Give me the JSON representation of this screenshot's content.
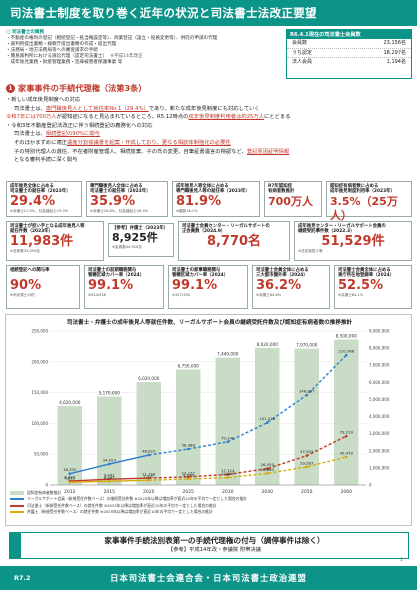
{
  "header": {
    "title": "司法書士制度を取り巻く近年の状況と司法書士法改正要望"
  },
  "intro": {
    "heading": "司法書士の業務",
    "lines": [
      "不動産の権利の登記（相続登記・抵当権設定等）、商業登記（設立・役員変更等）、供託の申請の代理",
      "裁判所提出書類・検察庁提出書類の作成・提出代理",
      "法務局・地方法務局等への審査請求の手続",
      "簡易裁判所における訴訟代理（認定司法書士）"
    ],
    "note": "※平成14年改正",
    "last": "成年後見業務・財産管理業務・犯罪被害者保護事業 等",
    "tail": "等"
  },
  "stats": {
    "heading": "R6.4.1現在の司法書士会員数",
    "rows": [
      {
        "label": "会員数",
        "value": "23,156名"
      },
      {
        "label": "うち認定",
        "value": "18,297名"
      },
      {
        "label": "法人会員",
        "value": "1,194名"
      }
    ]
  },
  "section": {
    "num": "1",
    "title_a": "家事事件の手続代理権",
    "title_b": "（法第3条）"
  },
  "body": {
    "l1": "・新しい成年後見制度への対応",
    "l2a": "司法書士は、",
    "l2b": "専門職後見人として就任率No.1（29.4%）",
    "l2c": "であり、新たな成年後見制度にも対応していく",
    "l3a": "令和7年には700万人",
    "l3b": "が認知症になると見込まれているところ、R5.12時点の",
    "l3c": "成年後見制度利用者は約25万人",
    "l3d": "にとどまる",
    "l4": "・令和3年不動産登記法改正に伴う相続登記の義務化への対応",
    "l5a": "司法書士は、",
    "l5b": "相続登記の90%に関与",
    "l6a": "そのほかまずめに適正",
    "l6b": "遺産分割協議書を起案・作成しており、",
    "l6c": "更なる相談体制強化の必要性",
    "l7a": "子の特別代理人の選任、不在者財産管理人、相続放棄、子の氏の変更、自筆証書遺言の検認など、",
    "l7b": "登記原因証明情報",
    "l8": "となる審判手続に深く関与"
  },
  "boxes": {
    "b1": {
      "label": "成年後見全体に占める\n司法書士の就任率（2023年）",
      "value": "29.4%",
      "foot": "※弁護士21.9%、社会福祉士15.0%"
    },
    "b2": {
      "label": "専門職後見人全体に占める\n司法書士の就任率（2023年）",
      "value": "35.9%",
      "foot": "※弁護士26.8%、社会福祉士18.4%"
    },
    "b3": {
      "label": "成年後見人等全体に占める\n専門職後見人等の就任率（2023年）",
      "value": "81.9%",
      "foot": "※親族18.1%"
    },
    "b4": {
      "label": "R7年認知症\n有病者数推計",
      "value": "700万人",
      "foot": ""
    },
    "b5": {
      "label": "認知症有病者数に占める\n成年後見制度利用率（2023年）",
      "value": "3.5%（25万人）",
      "foot": "※低調"
    },
    "b6": {
      "label": "司法書士が担い手となる成年後見人等\n就任件数（2023年）",
      "value": "11,983件",
      "foot": "※全体数33,059名"
    },
    "b7": {
      "label": "【参考】弁護士（2023年）",
      "value": "8,925件",
      "foot": "※会員数44,916名"
    },
    "b8": {
      "label": "司法書士会員センター・リーガルサポートの\n正会員数（2024.9）",
      "value": "8,770名",
      "foot": ""
    },
    "b9": {
      "label": "成年後見センター・リーガルサポート会員の\n継続受託事件数（2022.3）",
      "value": "51,529件",
      "foot": "※法定後見人等"
    },
    "c1": {
      "label": "相続登記への関与率",
      "value": "90%",
      "foot": "※司法書士の約"
    },
    "c2": {
      "label": "司法書士の前期職務関与\n管轄区域カバー率（2024）",
      "value": "99.1%",
      "foot": "※434/438"
    },
    "c3": {
      "label": "司法書士の家事職務関与\n管轄区域カバー率（2024）",
      "value": "99.1%",
      "foot": "※327/330"
    },
    "c4": {
      "label": "司法書士会員全体に占める\n三大都市圏外率（2024）",
      "value": "36.2%",
      "foot": "※弁護士64.8%"
    },
    "c5": {
      "label": "司法書士会員全体に占める\n東庁所在地登録率（2024）",
      "value": "52.5%",
      "foot": "※弁護士84.1%"
    }
  },
  "chart_data": {
    "type": "bar",
    "title": "司法書士・弁護士の成年後見人等就任件数、リーガルサポート会員の継続受託件数及び認知症有病者数の推移推計",
    "categories": [
      "2012",
      "2015",
      "2020",
      "2025",
      "2030",
      "2040",
      "2050",
      "2060"
    ],
    "series": [
      {
        "name": "認知症有病者数推計",
        "values": [
          4620000,
          5170000,
          6020000,
          6750000,
          7440000,
          8020000,
          7970000,
          8500000
        ],
        "axis": "right"
      },
      {
        "name": "リーガルサポート会員（継続受託件数）",
        "values": [
          18332,
          34023,
          48623,
          58388,
          70140,
          101218,
          146067,
          210786
        ]
      },
      {
        "name": "司法書士（新規就任件数）",
        "values": [
          6382,
          9442,
          11184,
          13272,
          17124,
          26555,
          47592,
          79219
        ]
      },
      {
        "name": "弁護士（新規就任件数）",
        "values": [
          4613,
          6087,
          7731,
          9746,
          12000,
          18860,
          29287,
          45479
        ]
      }
    ],
    "yleft_ticks": [
      "0",
      "50,000",
      "100,000",
      "150,000",
      "200,000",
      "250,000"
    ],
    "yright_ticks": [
      "0",
      "1,000,000",
      "2,000,000",
      "3,000,000",
      "4,000,000",
      "5,000,000",
      "6,000,000",
      "7,000,000",
      "8,000,000",
      "9,000,000"
    ],
    "ylim_left": [
      0,
      250000
    ],
    "ylim_right": [
      0,
      9000000
    ],
    "bar_labels": [
      "4,620,000",
      "5,170,000",
      "6,020,000",
      "6,750,000",
      "7,440,000",
      "8,020,000",
      "7,970,000",
      "8,500,000"
    ],
    "colors": {
      "bar": "#c8dcc6",
      "legal": "#2f7fd1",
      "shihou": "#c0392b",
      "bengo": "#d4ac0d"
    }
  },
  "legend": {
    "items": [
      "認知症有病者数推計",
      "リーガルサポート会員（新規受任件数ベース）の継続受託件数 ※2025年以降は増加率が直近10年の平均で一定とした場合の推計",
      "司法書士（新規受任件数ベース）の就任件数 ※2025年以降は増加率が直近10年の平均で一定とした場合の推計",
      "弁護士（新規受任件数ベース）の就任件数 ※2025年以降は増加率が直近10年の平均で一定とした場合の推計"
    ]
  },
  "banner": {
    "t1": "家事事件手続法別表第一の手続代理権の付与（調停事件は除く）",
    "t2": "【参考】平成14年改・参議院 附帯決議"
  },
  "footer": {
    "left": "R7.2",
    "center": "日本司法書士会連合会・日本司法書士政治連盟"
  },
  "page_no": "1"
}
